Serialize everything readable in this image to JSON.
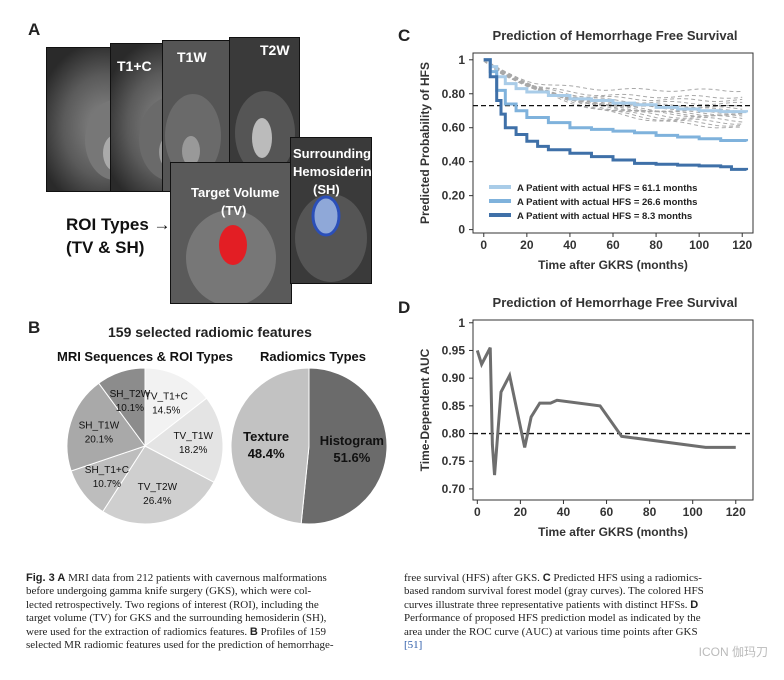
{
  "panel_a": {
    "letter": "A",
    "images": [
      {
        "label": "T1+C"
      },
      {
        "label": "T1W"
      },
      {
        "label": "T2W"
      }
    ],
    "target_label": [
      "Target Volume",
      "(TV)"
    ],
    "surround_label": [
      "Surrounding",
      "Hemosiderin",
      "(SH)"
    ],
    "roi_text": [
      "ROI Types →",
      "(TV & SH)"
    ]
  },
  "panel_b": {
    "letter": "B",
    "title": "159 selected radiomic features",
    "pie1_title": "MRI Sequences & ROI Types",
    "pie2_title": "Radiomics Types",
    "pie1": [
      {
        "name": "TV_T1+C",
        "value": 14.5,
        "label": "14.5%",
        "color": "#f2f2f2"
      },
      {
        "name": "TV_T1W",
        "value": 18.2,
        "label": "18.2%",
        "color": "#e4e4e4"
      },
      {
        "name": "TV_T2W",
        "value": 26.4,
        "label": "26.4%",
        "color": "#cfcfcf"
      },
      {
        "name": "SH_T1+C",
        "value": 10.7,
        "label": "10.7%",
        "color": "#bdbdbd"
      },
      {
        "name": "SH_T1W",
        "value": 20.1,
        "label": "20.1%",
        "color": "#a9a9a9"
      },
      {
        "name": "SH_T2W",
        "value": 10.1,
        "label": "10.1%",
        "color": "#8c8c8c"
      }
    ],
    "pie2": [
      {
        "name": "Histogram",
        "value": 51.6,
        "label": "51.6%",
        "color": "#6b6b6b"
      },
      {
        "name": "Texture",
        "value": 48.4,
        "label": "48.4%",
        "color": "#c2c2c2"
      }
    ]
  },
  "chart_data": [
    {
      "panel": "C",
      "type": "line",
      "title": "Prediction of Hemorrhage Free Survival",
      "xlabel": "Time after GKRS (months)",
      "ylabel": "Predicted Probability of HFS",
      "xlim": [
        -5,
        125
      ],
      "ylim": [
        -0.02,
        1.04
      ],
      "xticks": [
        0,
        20,
        40,
        60,
        80,
        100,
        120
      ],
      "yticks": [
        0,
        0.2,
        0.4,
        0.6,
        0.8,
        1
      ],
      "reference_line": 0.73,
      "legend_position": "bottom-left",
      "series": [
        {
          "name": "A Patient with actual HFS = 61.1 months",
          "color": "#a9cce8",
          "x": [
            0,
            3,
            6,
            10,
            15,
            20,
            30,
            40,
            50,
            60,
            70,
            80,
            90,
            100,
            110,
            122
          ],
          "y": [
            1,
            0.96,
            0.9,
            0.86,
            0.83,
            0.81,
            0.79,
            0.77,
            0.76,
            0.745,
            0.735,
            0.72,
            0.71,
            0.7,
            0.695,
            0.69
          ]
        },
        {
          "name": "A Patient with actual HFS = 26.6 months",
          "color": "#7fb2dc",
          "x": [
            0,
            3,
            6,
            10,
            15,
            20,
            30,
            40,
            50,
            60,
            70,
            80,
            90,
            100,
            110,
            122
          ],
          "y": [
            1,
            0.93,
            0.82,
            0.74,
            0.7,
            0.66,
            0.63,
            0.6,
            0.59,
            0.58,
            0.57,
            0.555,
            0.545,
            0.535,
            0.525,
            0.52
          ]
        },
        {
          "name": "A Patient with actual HFS = 8.3 months",
          "color": "#3f70a8",
          "x": [
            0,
            3,
            6,
            8,
            10,
            15,
            20,
            25,
            30,
            40,
            50,
            60,
            70,
            80,
            90,
            100,
            110,
            115,
            122
          ],
          "y": [
            1,
            0.9,
            0.76,
            0.68,
            0.6,
            0.56,
            0.52,
            0.49,
            0.47,
            0.45,
            0.43,
            0.41,
            0.39,
            0.385,
            0.38,
            0.375,
            0.37,
            0.355,
            0.35
          ]
        }
      ]
    },
    {
      "panel": "D",
      "type": "line",
      "title": "Prediction of Hemorrhage Free Survival",
      "xlabel": "Time after GKRS (months)",
      "ylabel": "Time-Dependent AUC",
      "xlim": [
        -2,
        128
      ],
      "ylim": [
        0.68,
        1.005
      ],
      "xticks": [
        0,
        20,
        40,
        60,
        80,
        100,
        120
      ],
      "yticks": [
        0.7,
        0.75,
        0.8,
        0.85,
        0.9,
        0.95,
        1
      ],
      "reference_line": 0.8,
      "series": [
        {
          "color": "#6e6e6e",
          "x": [
            0,
            2,
            4,
            6,
            7,
            8,
            11,
            15,
            22,
            25,
            29,
            34,
            37,
            57,
            67,
            106,
            120
          ],
          "y": [
            0.95,
            0.925,
            0.94,
            0.955,
            0.78,
            0.725,
            0.875,
            0.905,
            0.775,
            0.83,
            0.855,
            0.855,
            0.86,
            0.85,
            0.795,
            0.775,
            0.775
          ]
        }
      ]
    }
  ],
  "caption": {
    "col1_lines": [
      [
        "Fig. 3 ",
        "A",
        " MRI data from 212 patients with cavernous malformations"
      ],
      [
        "",
        "",
        "before undergoing gamma knife surgery (GKS), which were col-"
      ],
      [
        "",
        "",
        "lected retrospectively. Two regions of interest (ROI), including the"
      ],
      [
        "",
        "",
        "target volume (TV) for GKS and the surrounding hemosiderin (SH),"
      ],
      [
        "",
        "",
        "were used for the extraction of radiomics features. "
      ],
      [
        "",
        "",
        "selected MR radiomic features used for the prediction of hemorrhage-"
      ]
    ],
    "col1_b_text": "B",
    "col1_b_after": " Profiles of 159",
    "col2_lines": [
      "free survival (HFS) after GKS. ",
      "based random survival forest model (gray curves). The colored HFS",
      "curves illustrate three representative patients with distinct HFSs. ",
      "Performance of proposed HFS prediction model as indicated by the",
      "area under the ROC curve (AUC) at various time points after GKS",
      "[51]"
    ],
    "col2_c_letter": "C",
    "col2_c_after": " Predicted HFS using a radiomics-",
    "col2_d_letter": "D",
    "watermark": "ICON 伽玛刀"
  }
}
